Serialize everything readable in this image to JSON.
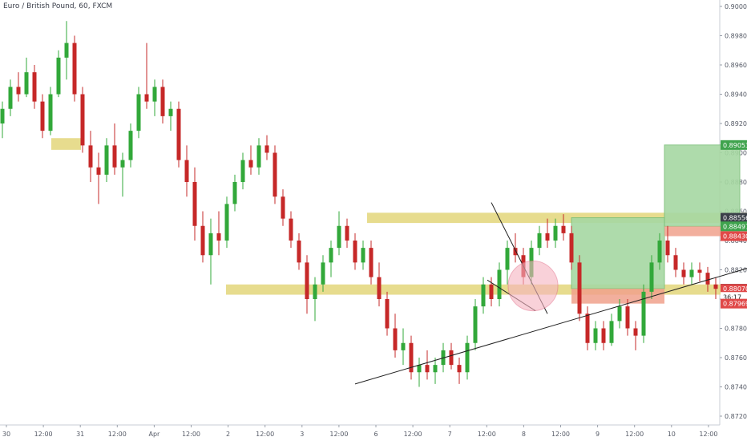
{
  "header": {
    "title": "Euro / British Pound, 60, FXCM"
  },
  "colors": {
    "up": "#32a83a",
    "down": "#c62828",
    "zone": "#e3d67a",
    "profit": "#a6d8a2",
    "loss": "#f0a18c",
    "axis_text": "#555a66",
    "label_green": "#3fa34d",
    "label_red": "#e04848",
    "label_dark": "#3b4049"
  },
  "chart_data": {
    "type": "candlestick",
    "title": "Euro / British Pound, 60, FXCM",
    "ylim": [
      0.872,
      0.9
    ],
    "y_ticks": [
      "0.90000",
      "0.89800",
      "0.89600",
      "0.89400",
      "0.89200",
      "0.89000",
      "0.88800",
      "0.88600",
      "0.88400",
      "0.88200",
      "0.88000",
      "0.87800",
      "0.87600",
      "0.87400",
      "0.87200"
    ],
    "x_ticks": [
      "30",
      "12:00",
      "31",
      "12:00",
      "Apr",
      "12:00",
      "2",
      "12:00",
      "3",
      "12:00",
      "6",
      "12:00",
      "7",
      "12:00",
      "8",
      "12:00",
      "9",
      "12:00",
      "10",
      "12:00"
    ],
    "price_labels": [
      {
        "text": "0.89053",
        "value": 0.89053,
        "kind": "green"
      },
      {
        "text": "0.88556",
        "value": 0.88556,
        "kind": "dark"
      },
      {
        "text": "0.88497",
        "value": 0.88497,
        "kind": "green"
      },
      {
        "text": "0.88430",
        "value": 0.8843,
        "kind": "red"
      },
      {
        "text": "0.88071",
        "value": 0.88071,
        "kind": "dark"
      },
      {
        "text": "0.88070",
        "value": 0.8807,
        "kind": "red"
      },
      {
        "text": "36:17",
        "value": 0.88015,
        "kind": "plain"
      },
      {
        "text": "0.87969",
        "value": 0.87969,
        "kind": "red"
      }
    ],
    "zones": [
      {
        "from_ts": 6.1,
        "to_ts": 9.8,
        "top": 0.891,
        "bottom": 0.8902
      },
      {
        "from_ts": 45.5,
        "to_ts": 95.0,
        "top": 0.8859,
        "bottom": 0.8852
      },
      {
        "from_ts": 27.9,
        "to_ts": 95.0,
        "top": 0.881,
        "bottom": 0.8803
      }
    ],
    "positions": [
      {
        "from_ts": 71.0,
        "to_ts": 82.6,
        "entry": 0.88071,
        "target": 0.88556,
        "stop": 0.87969
      },
      {
        "from_ts": 82.6,
        "to_ts": 92.0,
        "entry": 0.88497,
        "target": 0.89053,
        "stop": 0.8843
      }
    ],
    "trendline": {
      "x1": 44.0,
      "y1": 0.8742,
      "x2": 96.0,
      "y2": 0.8826
    },
    "wedge": [
      {
        "x1": 61.0,
        "y1": 0.8866,
        "x2": 68.0,
        "y2": 0.879
      },
      {
        "x1": 60.5,
        "y1": 0.8813,
        "x2": 66.5,
        "y2": 0.8792
      }
    ],
    "circle": {
      "cx": 66.2,
      "cy": 0.8809,
      "r": 0.0017
    },
    "candles": [
      [
        0.892,
        0.8935,
        0.891,
        0.893
      ],
      [
        0.893,
        0.895,
        0.8925,
        0.8945
      ],
      [
        0.8945,
        0.8955,
        0.8935,
        0.894
      ],
      [
        0.894,
        0.8965,
        0.8938,
        0.8955
      ],
      [
        0.8955,
        0.896,
        0.893,
        0.8935
      ],
      [
        0.8935,
        0.894,
        0.891,
        0.8915
      ],
      [
        0.8915,
        0.8945,
        0.8912,
        0.894
      ],
      [
        0.894,
        0.897,
        0.8938,
        0.8965
      ],
      [
        0.8965,
        0.899,
        0.895,
        0.8975
      ],
      [
        0.8975,
        0.898,
        0.8935,
        0.894
      ],
      [
        0.894,
        0.8945,
        0.89,
        0.8905
      ],
      [
        0.8905,
        0.8915,
        0.888,
        0.889
      ],
      [
        0.889,
        0.89,
        0.8865,
        0.8885
      ],
      [
        0.8885,
        0.891,
        0.888,
        0.8905
      ],
      [
        0.8905,
        0.892,
        0.8885,
        0.889
      ],
      [
        0.889,
        0.89,
        0.887,
        0.8895
      ],
      [
        0.8895,
        0.892,
        0.889,
        0.8915
      ],
      [
        0.8915,
        0.8945,
        0.891,
        0.894
      ],
      [
        0.894,
        0.8975,
        0.893,
        0.8935
      ],
      [
        0.8935,
        0.895,
        0.8925,
        0.8945
      ],
      [
        0.8945,
        0.895,
        0.892,
        0.8925
      ],
      [
        0.8925,
        0.8935,
        0.8915,
        0.893
      ],
      [
        0.893,
        0.8935,
        0.889,
        0.8895
      ],
      [
        0.8895,
        0.8905,
        0.887,
        0.888
      ],
      [
        0.888,
        0.889,
        0.884,
        0.885
      ],
      [
        0.885,
        0.886,
        0.8825,
        0.883
      ],
      [
        0.883,
        0.8855,
        0.881,
        0.8845
      ],
      [
        0.8845,
        0.886,
        0.883,
        0.884
      ],
      [
        0.884,
        0.887,
        0.8835,
        0.8865
      ],
      [
        0.8865,
        0.8885,
        0.886,
        0.888
      ],
      [
        0.888,
        0.89,
        0.8875,
        0.8895
      ],
      [
        0.8895,
        0.8905,
        0.8885,
        0.889
      ],
      [
        0.889,
        0.891,
        0.8885,
        0.8905
      ],
      [
        0.8905,
        0.8912,
        0.8895,
        0.89
      ],
      [
        0.89,
        0.8905,
        0.8865,
        0.887
      ],
      [
        0.887,
        0.8875,
        0.885,
        0.8855
      ],
      [
        0.8855,
        0.886,
        0.8835,
        0.884
      ],
      [
        0.884,
        0.8845,
        0.882,
        0.8825
      ],
      [
        0.8825,
        0.883,
        0.879,
        0.88
      ],
      [
        0.88,
        0.8815,
        0.8785,
        0.881
      ],
      [
        0.881,
        0.883,
        0.8805,
        0.8825
      ],
      [
        0.8825,
        0.884,
        0.8815,
        0.8835
      ],
      [
        0.8835,
        0.886,
        0.883,
        0.885
      ],
      [
        0.885,
        0.8855,
        0.8835,
        0.884
      ],
      [
        0.884,
        0.8845,
        0.882,
        0.8825
      ],
      [
        0.8825,
        0.884,
        0.882,
        0.8835
      ],
      [
        0.8835,
        0.884,
        0.881,
        0.8815
      ],
      [
        0.8815,
        0.8825,
        0.8795,
        0.88
      ],
      [
        0.88,
        0.8805,
        0.8775,
        0.878
      ],
      [
        0.878,
        0.879,
        0.876,
        0.8765
      ],
      [
        0.8765,
        0.878,
        0.8755,
        0.877
      ],
      [
        0.877,
        0.8775,
        0.8745,
        0.875
      ],
      [
        0.875,
        0.876,
        0.874,
        0.8755
      ],
      [
        0.8755,
        0.8765,
        0.8745,
        0.875
      ],
      [
        0.875,
        0.876,
        0.8742,
        0.8755
      ],
      [
        0.8755,
        0.877,
        0.875,
        0.8765
      ],
      [
        0.8765,
        0.877,
        0.8752,
        0.8755
      ],
      [
        0.8755,
        0.876,
        0.8742,
        0.875
      ],
      [
        0.875,
        0.8775,
        0.8745,
        0.877
      ],
      [
        0.877,
        0.88,
        0.8765,
        0.8795
      ],
      [
        0.8795,
        0.8815,
        0.879,
        0.881
      ],
      [
        0.881,
        0.8815,
        0.8795,
        0.88
      ],
      [
        0.88,
        0.8825,
        0.8795,
        0.882
      ],
      [
        0.882,
        0.884,
        0.881,
        0.8835
      ],
      [
        0.8835,
        0.8845,
        0.8825,
        0.883
      ],
      [
        0.883,
        0.8835,
        0.881,
        0.8815
      ],
      [
        0.8815,
        0.884,
        0.881,
        0.8835
      ],
      [
        0.8835,
        0.885,
        0.883,
        0.8845
      ],
      [
        0.8845,
        0.8855,
        0.8835,
        0.884
      ],
      [
        0.884,
        0.8855,
        0.8835,
        0.885
      ],
      [
        0.885,
        0.8858,
        0.884,
        0.8845
      ],
      [
        0.8845,
        0.885,
        0.882,
        0.8825
      ],
      [
        0.8825,
        0.883,
        0.8785,
        0.879
      ],
      [
        0.879,
        0.8795,
        0.8765,
        0.877
      ],
      [
        0.877,
        0.8785,
        0.8765,
        0.878
      ],
      [
        0.878,
        0.8785,
        0.8765,
        0.877
      ],
      [
        0.877,
        0.879,
        0.8768,
        0.8785
      ],
      [
        0.8785,
        0.88,
        0.878,
        0.8795
      ],
      [
        0.8795,
        0.88,
        0.8775,
        0.878
      ],
      [
        0.878,
        0.8785,
        0.8765,
        0.8775
      ],
      [
        0.8775,
        0.881,
        0.877,
        0.8805
      ],
      [
        0.8805,
        0.883,
        0.88,
        0.8825
      ],
      [
        0.8825,
        0.8845,
        0.882,
        0.884
      ],
      [
        0.884,
        0.885,
        0.8825,
        0.883
      ],
      [
        0.883,
        0.8835,
        0.8815,
        0.882
      ],
      [
        0.882,
        0.8825,
        0.881,
        0.8815
      ],
      [
        0.8815,
        0.8825,
        0.881,
        0.882
      ],
      [
        0.882,
        0.8825,
        0.8812,
        0.8818
      ],
      [
        0.8818,
        0.8822,
        0.8805,
        0.881
      ],
      [
        0.881,
        0.8815,
        0.88,
        0.8807
      ]
    ]
  }
}
